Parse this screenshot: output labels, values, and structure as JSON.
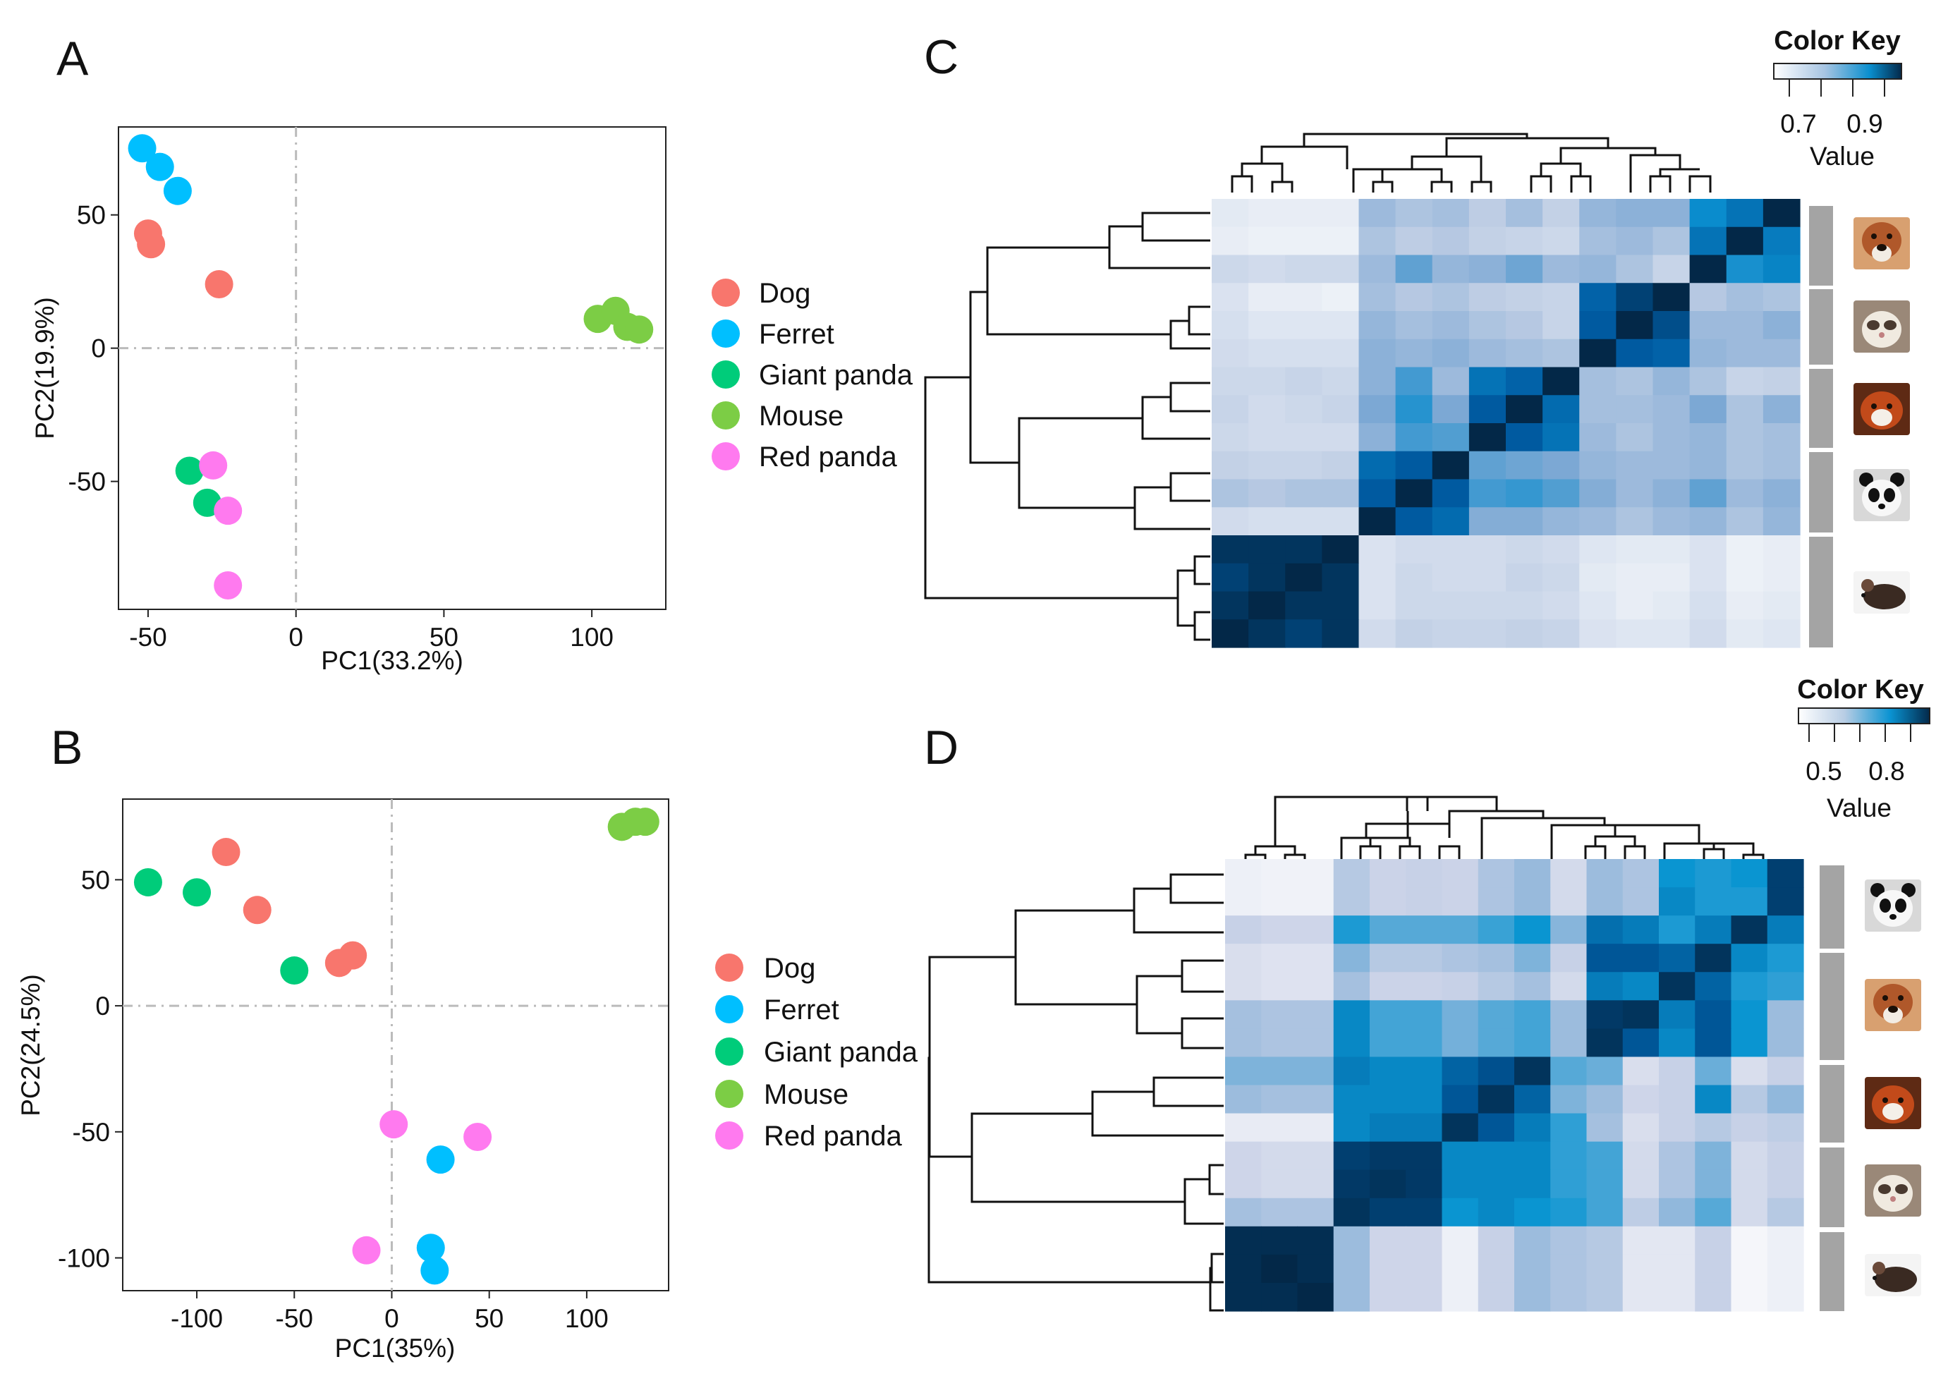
{
  "colors": {
    "Dog": "#F8766D",
    "Ferret": "#00BFFF",
    "Giant panda": "#00CC7A",
    "Mouse": "#7CCD45",
    "Red panda": "#FF7AEF"
  },
  "chart_data": [
    {
      "panel": "A",
      "type": "scatter",
      "xlabel": "PC1(33.2%)",
      "ylabel": "PC2(19.9%)",
      "xlim": [
        -60,
        125
      ],
      "ylim": [
        -98,
        83
      ],
      "xticks": [
        -50,
        0,
        50,
        100
      ],
      "yticks": [
        50,
        0,
        -50
      ],
      "legend_title": "",
      "legend": [
        "Dog",
        "Ferret",
        "Giant panda",
        "Mouse",
        "Red panda"
      ],
      "series": [
        {
          "name": "Dog",
          "points": [
            [
              -50,
              43
            ],
            [
              -49,
              39
            ],
            [
              -26,
              24
            ]
          ]
        },
        {
          "name": "Ferret",
          "points": [
            [
              -52,
              75
            ],
            [
              -46,
              68
            ],
            [
              -40,
              59
            ]
          ]
        },
        {
          "name": "Giant panda",
          "points": [
            [
              -36,
              -46
            ],
            [
              -30,
              -58
            ]
          ]
        },
        {
          "name": "Mouse",
          "points": [
            [
              102,
              11
            ],
            [
              108,
              14
            ],
            [
              112,
              8
            ],
            [
              116,
              7
            ]
          ]
        },
        {
          "name": "Red panda",
          "points": [
            [
              -28,
              -44
            ],
            [
              -23,
              -61
            ],
            [
              -23,
              -89
            ]
          ]
        }
      ]
    },
    {
      "panel": "B",
      "type": "scatter",
      "xlabel": "PC1(35%)",
      "ylabel": "PC2(24.5%)",
      "xlim": [
        -138,
        142
      ],
      "ylim": [
        -113,
        82
      ],
      "xticks": [
        -100,
        -50,
        0,
        50,
        100
      ],
      "yticks": [
        50,
        0,
        -50,
        -100
      ],
      "legend_title": "",
      "legend": [
        "Dog",
        "Ferret",
        "Giant panda",
        "Mouse",
        "Red panda"
      ],
      "series": [
        {
          "name": "Dog",
          "points": [
            [
              -85,
              61
            ],
            [
              -69,
              38
            ],
            [
              -27,
              17
            ],
            [
              -20,
              20
            ]
          ]
        },
        {
          "name": "Ferret",
          "points": [
            [
              25,
              -61
            ],
            [
              20,
              -96
            ],
            [
              22,
              -105
            ]
          ]
        },
        {
          "name": "Giant panda",
          "points": [
            [
              -125,
              49
            ],
            [
              -100,
              45
            ],
            [
              -50,
              14
            ]
          ]
        },
        {
          "name": "Mouse",
          "points": [
            [
              118,
              71
            ],
            [
              125,
              73
            ],
            [
              130,
              73
            ]
          ]
        },
        {
          "name": "Red panda",
          "points": [
            [
              1,
              -47
            ],
            [
              44,
              -52
            ],
            [
              -13,
              -97
            ]
          ]
        }
      ]
    },
    {
      "panel": "C",
      "type": "heatmap",
      "title": "Color Key",
      "key_label": "Value",
      "key_ticks": [
        "0.7",
        "0.9"
      ],
      "range": [
        0.6,
        1.0
      ],
      "row_groups": [
        "Dog",
        "Ferret",
        "Red panda",
        "Giant panda",
        "Mouse"
      ],
      "col_groups": [
        "Mouse",
        "Giant panda",
        "Red panda",
        "Ferret",
        "Dog"
      ],
      "values": [
        [
          0.66,
          0.65,
          0.65,
          0.65,
          0.78,
          0.76,
          0.77,
          0.74,
          0.77,
          0.73,
          0.79,
          0.8,
          0.8,
          0.9,
          0.93,
          1.0
        ],
        [
          0.65,
          0.64,
          0.64,
          0.64,
          0.76,
          0.74,
          0.75,
          0.73,
          0.72,
          0.71,
          0.77,
          0.78,
          0.76,
          0.93,
          1.0,
          0.92
        ],
        [
          0.71,
          0.7,
          0.71,
          0.71,
          0.78,
          0.84,
          0.79,
          0.8,
          0.83,
          0.78,
          0.79,
          0.76,
          0.72,
          1.0,
          0.89,
          0.91
        ],
        [
          0.68,
          0.65,
          0.65,
          0.64,
          0.77,
          0.75,
          0.76,
          0.74,
          0.73,
          0.72,
          0.95,
          0.98,
          1.0,
          0.75,
          0.77,
          0.76
        ],
        [
          0.69,
          0.67,
          0.67,
          0.67,
          0.79,
          0.77,
          0.78,
          0.76,
          0.75,
          0.72,
          0.96,
          1.0,
          0.97,
          0.78,
          0.78,
          0.8
        ],
        [
          0.7,
          0.69,
          0.69,
          0.69,
          0.8,
          0.79,
          0.8,
          0.78,
          0.77,
          0.76,
          1.0,
          0.96,
          0.95,
          0.79,
          0.78,
          0.78
        ],
        [
          0.71,
          0.71,
          0.72,
          0.71,
          0.8,
          0.86,
          0.78,
          0.93,
          0.95,
          1.0,
          0.77,
          0.76,
          0.79,
          0.76,
          0.72,
          0.73
        ],
        [
          0.72,
          0.7,
          0.71,
          0.72,
          0.82,
          0.88,
          0.82,
          0.96,
          1.0,
          0.94,
          0.77,
          0.77,
          0.78,
          0.82,
          0.76,
          0.8
        ],
        [
          0.71,
          0.7,
          0.7,
          0.7,
          0.8,
          0.86,
          0.85,
          1.0,
          0.96,
          0.93,
          0.78,
          0.76,
          0.78,
          0.79,
          0.76,
          0.77
        ],
        [
          0.73,
          0.72,
          0.72,
          0.73,
          0.94,
          0.96,
          1.0,
          0.84,
          0.83,
          0.82,
          0.79,
          0.78,
          0.78,
          0.79,
          0.76,
          0.77
        ],
        [
          0.76,
          0.75,
          0.76,
          0.76,
          0.96,
          1.0,
          0.96,
          0.86,
          0.87,
          0.85,
          0.81,
          0.78,
          0.8,
          0.84,
          0.78,
          0.8
        ],
        [
          0.7,
          0.69,
          0.69,
          0.69,
          1.0,
          0.96,
          0.94,
          0.81,
          0.81,
          0.79,
          0.78,
          0.76,
          0.78,
          0.79,
          0.76,
          0.79
        ],
        [
          0.99,
          0.99,
          0.99,
          1.0,
          0.68,
          0.7,
          0.7,
          0.7,
          0.71,
          0.7,
          0.67,
          0.66,
          0.66,
          0.68,
          0.64,
          0.65
        ],
        [
          0.98,
          0.99,
          1.0,
          0.99,
          0.68,
          0.71,
          0.7,
          0.7,
          0.72,
          0.71,
          0.66,
          0.65,
          0.65,
          0.68,
          0.64,
          0.65
        ],
        [
          0.99,
          1.0,
          0.99,
          0.99,
          0.68,
          0.71,
          0.71,
          0.71,
          0.71,
          0.7,
          0.67,
          0.65,
          0.66,
          0.69,
          0.65,
          0.66
        ],
        [
          1.0,
          0.99,
          0.98,
          0.99,
          0.7,
          0.73,
          0.72,
          0.72,
          0.73,
          0.72,
          0.68,
          0.67,
          0.67,
          0.7,
          0.66,
          0.67
        ]
      ]
    },
    {
      "panel": "D",
      "type": "heatmap",
      "title": "Color Key",
      "key_label": "Value",
      "key_ticks": [
        "0.5",
        "0.8"
      ],
      "range": [
        0.35,
        1.0
      ],
      "row_groups": [
        "Giant panda",
        "Dog",
        "Red panda",
        "Ferret",
        "Mouse"
      ],
      "col_groups": [
        "Mouse",
        "Ferret",
        "Red panda",
        "Dog",
        "Giant panda"
      ],
      "values": [
        [
          0.42,
          0.41,
          0.41,
          0.6,
          0.55,
          0.56,
          0.55,
          0.62,
          0.67,
          0.52,
          0.66,
          0.62,
          0.82,
          0.8,
          0.82,
          0.96
        ],
        [
          0.42,
          0.41,
          0.41,
          0.6,
          0.55,
          0.56,
          0.55,
          0.62,
          0.67,
          0.52,
          0.66,
          0.62,
          0.84,
          0.8,
          0.8,
          0.96
        ],
        [
          0.56,
          0.54,
          0.54,
          0.8,
          0.74,
          0.74,
          0.74,
          0.77,
          0.82,
          0.69,
          0.88,
          0.86,
          0.8,
          0.86,
          0.98,
          0.86
        ],
        [
          0.5,
          0.48,
          0.48,
          0.69,
          0.6,
          0.6,
          0.62,
          0.64,
          0.7,
          0.56,
          0.92,
          0.92,
          0.9,
          0.98,
          0.84,
          0.8
        ],
        [
          0.5,
          0.48,
          0.48,
          0.64,
          0.55,
          0.55,
          0.56,
          0.6,
          0.64,
          0.52,
          0.86,
          0.84,
          0.98,
          0.9,
          0.8,
          0.78
        ],
        [
          0.64,
          0.62,
          0.62,
          0.84,
          0.76,
          0.76,
          0.71,
          0.74,
          0.76,
          0.66,
          0.97,
          0.98,
          0.86,
          0.92,
          0.82,
          0.66
        ],
        [
          0.64,
          0.62,
          0.62,
          0.84,
          0.76,
          0.76,
          0.71,
          0.74,
          0.76,
          0.66,
          0.98,
          0.92,
          0.84,
          0.92,
          0.82,
          0.66
        ],
        [
          0.7,
          0.7,
          0.7,
          0.86,
          0.84,
          0.84,
          0.9,
          0.93,
          0.98,
          0.74,
          0.72,
          0.5,
          0.56,
          0.72,
          0.5,
          0.56
        ],
        [
          0.66,
          0.64,
          0.64,
          0.84,
          0.84,
          0.84,
          0.92,
          0.98,
          0.9,
          0.7,
          0.66,
          0.54,
          0.56,
          0.84,
          0.6,
          0.68
        ],
        [
          0.44,
          0.44,
          0.44,
          0.84,
          0.86,
          0.86,
          0.98,
          0.92,
          0.86,
          0.78,
          0.64,
          0.5,
          0.56,
          0.6,
          0.56,
          0.58
        ],
        [
          0.54,
          0.52,
          0.52,
          0.96,
          0.97,
          0.97,
          0.84,
          0.84,
          0.84,
          0.78,
          0.76,
          0.52,
          0.62,
          0.7,
          0.52,
          0.56
        ],
        [
          0.54,
          0.52,
          0.52,
          0.97,
          0.98,
          0.97,
          0.84,
          0.84,
          0.84,
          0.78,
          0.76,
          0.52,
          0.62,
          0.7,
          0.52,
          0.56
        ],
        [
          0.64,
          0.62,
          0.62,
          0.98,
          0.96,
          0.96,
          0.82,
          0.84,
          0.82,
          0.8,
          0.76,
          0.58,
          0.68,
          0.74,
          0.52,
          0.6
        ],
        [
          0.99,
          0.99,
          0.99,
          0.66,
          0.54,
          0.54,
          0.42,
          0.56,
          0.66,
          0.62,
          0.6,
          0.46,
          0.46,
          0.56,
          0.39,
          0.42
        ],
        [
          0.99,
          1.0,
          0.99,
          0.66,
          0.54,
          0.54,
          0.42,
          0.56,
          0.66,
          0.62,
          0.6,
          0.46,
          0.46,
          0.56,
          0.39,
          0.42
        ],
        [
          0.99,
          0.99,
          1.0,
          0.66,
          0.54,
          0.54,
          0.42,
          0.56,
          0.66,
          0.62,
          0.6,
          0.46,
          0.46,
          0.56,
          0.39,
          0.42
        ]
      ]
    }
  ]
}
